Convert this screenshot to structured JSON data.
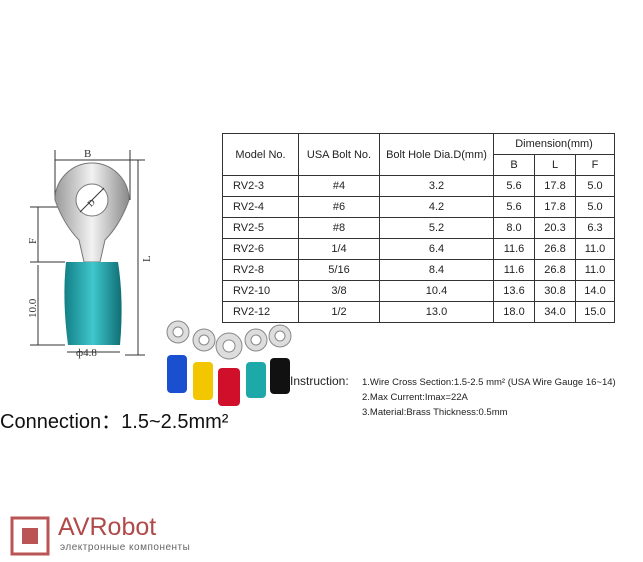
{
  "diagram": {
    "labels": {
      "b": "B",
      "d": "D",
      "f": "F",
      "l": "L",
      "length": "10.0",
      "diameter": "ф4.8"
    }
  },
  "table": {
    "headers": [
      "Model No.",
      "USA Bolt No.",
      "Bolt Hole Dia.D(mm)"
    ],
    "dimension_header": "Dimension(mm)",
    "dimension_columns": [
      "B",
      "L",
      "F"
    ],
    "rows": [
      [
        "RV2-3",
        "#4",
        "3.2",
        "5.6",
        "17.8",
        "5.0"
      ],
      [
        "RV2-4",
        "#6",
        "4.2",
        "5.6",
        "17.8",
        "5.0"
      ],
      [
        "RV2-5",
        "#8",
        "5.2",
        "8.0",
        "20.3",
        "6.3"
      ],
      [
        "RV2-6",
        "1/4",
        "6.4",
        "11.6",
        "26.8",
        "11.0"
      ],
      [
        "RV2-8",
        "5/16",
        "8.4",
        "11.6",
        "26.8",
        "11.0"
      ],
      [
        "RV2-10",
        "3/8",
        "10.4",
        "13.6",
        "30.8",
        "14.0"
      ],
      [
        "RV2-12",
        "1/2",
        "13.0",
        "18.0",
        "34.0",
        "15.0"
      ]
    ]
  },
  "instruction": {
    "label": "Instruction:",
    "items": [
      "1.Wire Cross Section:1.5-2.5 mm² (USA Wire Gauge 16~14)",
      "2.Max Current:Imax=22A",
      "3.Material:Brass Thickness:0.5mm"
    ]
  },
  "connection": "Connection：1.5~2.5mm²",
  "logo": {
    "name": "AVRobot",
    "tagline": "электронные компоненты"
  }
}
